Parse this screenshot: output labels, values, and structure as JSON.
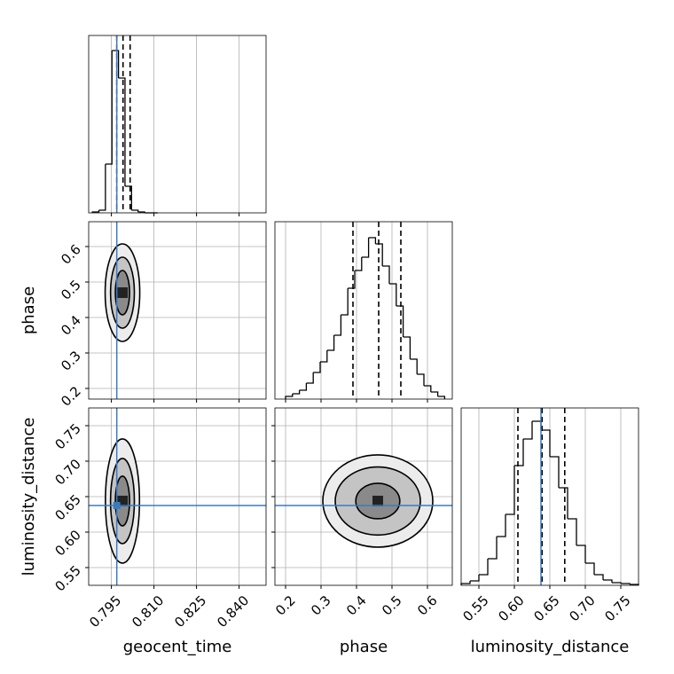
{
  "chart_data": {
    "type": "corner",
    "axes": [
      {
        "label": "geocent_time",
        "lim": [
          0.787,
          0.8495
        ],
        "ticks": [
          0.795,
          {
            "value": 0.81,
            "label": "0.810"
          },
          0.825,
          {
            "value": 0.84,
            "label": "0.840"
          }
        ],
        "truth": 0.7969
      },
      {
        "label": "phase",
        "lim": [
          0.17,
          0.67
        ],
        "ticks": [
          0.2,
          0.3,
          0.4,
          0.5,
          0.6
        ],
        "truth": null
      },
      {
        "label": "luminosity_distance",
        "lim": [
          0.525,
          0.775
        ],
        "ticks": [
          0.55,
          {
            "value": 0.6,
            "label": "0.60"
          },
          0.65,
          {
            "value": 0.7,
            "label": "0.70"
          },
          0.75
        ],
        "truth": 0.6375
      }
    ],
    "histograms": [
      {
        "bins": [
          0.7883,
          0.7906,
          0.7929,
          0.7952,
          0.7975,
          0.7998,
          0.8021,
          0.8044,
          0.8067,
          0.809,
          0.8113
        ],
        "counts": [
          1,
          3,
          55,
          183,
          152,
          30,
          3,
          1,
          0,
          0
        ],
        "ylim": [
          0,
          200
        ],
        "quantiles": [
          0.7969,
          0.7991,
          0.8016
        ]
      },
      {
        "bins": [
          0.2,
          0.2195,
          0.239,
          0.2585,
          0.278,
          0.2975,
          0.317,
          0.3365,
          0.356,
          0.3755,
          0.395,
          0.4145,
          0.434,
          0.4535,
          0.473,
          0.4925,
          0.512,
          0.5315,
          0.551,
          0.5705,
          0.59,
          0.6095,
          0.629,
          0.6485
        ],
        "counts": [
          3,
          6,
          10,
          18,
          30,
          42,
          55,
          72,
          95,
          125,
          145,
          160,
          182,
          175,
          150,
          130,
          105,
          70,
          45,
          28,
          15,
          8,
          3
        ],
        "ylim": [
          0,
          200
        ],
        "quantiles": [
          0.39,
          0.4625,
          0.525
        ]
      },
      {
        "bins": [
          0.525,
          0.5375,
          0.55,
          0.5625,
          0.575,
          0.5875,
          0.6,
          0.6125,
          0.625,
          0.6375,
          0.65,
          0.6625,
          0.675,
          0.6875,
          0.7,
          0.7125,
          0.725,
          0.7375,
          0.75,
          0.7625,
          0.775
        ],
        "counts": [
          2,
          5,
          12,
          30,
          55,
          80,
          135,
          165,
          185,
          175,
          145,
          110,
          75,
          45,
          25,
          12,
          6,
          3,
          2,
          1
        ],
        "ylim": [
          0,
          200
        ],
        "quantiles": [
          0.605,
          0.639,
          0.671
        ]
      }
    ],
    "contours": [
      {
        "x": 0,
        "y": 1,
        "levels": [
          {
            "cx": 0.7989,
            "cy": 0.47,
            "rx": 0.0061,
            "ry": 0.1375
          },
          {
            "cx": 0.7989,
            "cy": 0.47,
            "rx": 0.0042,
            "ry": 0.1
          },
          {
            "cx": 0.7989,
            "cy": 0.47,
            "rx": 0.0025,
            "ry": 0.0625
          }
        ]
      },
      {
        "x": 0,
        "y": 2,
        "levels": [
          {
            "cx": 0.7989,
            "cy": 0.6438,
            "rx": 0.006,
            "ry": 0.0875
          },
          {
            "cx": 0.7989,
            "cy": 0.6438,
            "rx": 0.0042,
            "ry": 0.06
          },
          {
            "cx": 0.7989,
            "cy": 0.6438,
            "rx": 0.0025,
            "ry": 0.035
          }
        ]
      },
      {
        "x": 1,
        "y": 2,
        "levels": [
          {
            "cx": 0.46,
            "cy": 0.6438,
            "rx": 0.155,
            "ry": 0.065
          },
          {
            "cx": 0.46,
            "cy": 0.6438,
            "rx": 0.12,
            "ry": 0.048
          },
          {
            "cx": 0.46,
            "cy": 0.6438,
            "rx": 0.062,
            "ry": 0.025
          }
        ]
      }
    ]
  }
}
